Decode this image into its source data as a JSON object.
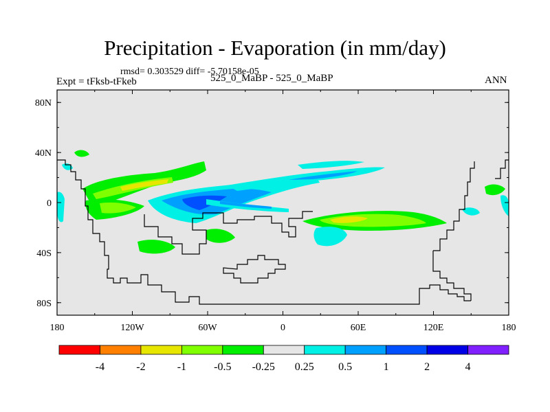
{
  "chart_data": {
    "type": "contour-map",
    "title": "Precipitation - Evaporation (in mm/day)",
    "stats": "rmsd= 0.303529 diff= -5.70158e-05",
    "left_label": "Expt = tFksb-tFkeb",
    "center_label": "525_0_MaBP - 525_0_MaBP",
    "right_label": "ANN",
    "x_ticks": [
      "180",
      "120W",
      "60W",
      "0",
      "60E",
      "120E",
      "180"
    ],
    "x_range": [
      -180,
      180
    ],
    "y_ticks": [
      "80N",
      "40N",
      "0",
      "40S",
      "80S"
    ],
    "y_range": [
      -90,
      90
    ],
    "colorbar": {
      "labels": [
        "-4",
        "-2",
        "-1",
        "-0.5",
        "-0.25",
        "0.25",
        "0.5",
        "1",
        "2",
        "4"
      ],
      "colors": [
        "#ff0000",
        "#ff8000",
        "#e6e600",
        "#80ff00",
        "#00ee00",
        "#e6e6e6",
        "#00f0e6",
        "#00a0ff",
        "#0050ff",
        "#0000e6",
        "#8020ff"
      ]
    },
    "map_background": "#e6e6e6"
  }
}
